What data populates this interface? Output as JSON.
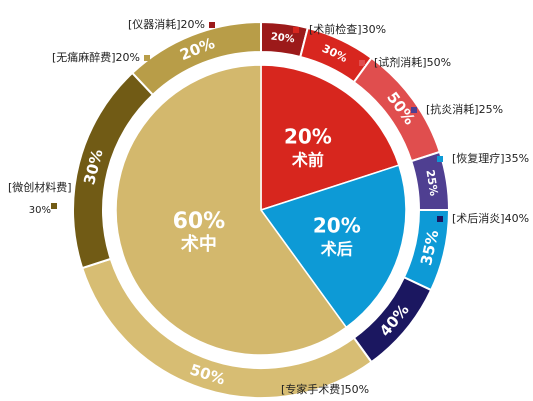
{
  "chart_data": {
    "type": "pie",
    "title": "",
    "inner_pie": [
      {
        "value": 20,
        "value_label": "20%",
        "name": "术前",
        "color": "#d7261e"
      },
      {
        "value": 20,
        "value_label": "20%",
        "name": "术后",
        "color": "#0d9ad6"
      },
      {
        "value": 60,
        "value_label": "60%",
        "name": "术中",
        "color": "#d3b86d"
      }
    ],
    "outer_ring": [
      {
        "parent": "术前",
        "value": 20,
        "value_label": "20%",
        "legend": "[仪器消耗]20%",
        "color": "#9c1a1a"
      },
      {
        "parent": "术前",
        "value": 30,
        "value_label": "30%",
        "legend": "[术前检查]30%",
        "color": "#d8261f"
      },
      {
        "parent": "术前",
        "value": 50,
        "value_label": "50%",
        "legend": "[试剂消耗]50%",
        "color": "#e04e4e"
      },
      {
        "parent": "术后",
        "value": 25,
        "value_label": "25%",
        "legend": "[抗炎消耗]25%",
        "color": "#4f3f91"
      },
      {
        "parent": "术后",
        "value": 35,
        "value_label": "35%",
        "legend": "[恢复理疗]35%",
        "color": "#0d9ad6"
      },
      {
        "parent": "术后",
        "value": 40,
        "value_label": "40%",
        "legend": "[术后消炎]40%",
        "color": "#1b1760"
      },
      {
        "parent": "术中",
        "value": 50,
        "value_label": "50%",
        "legend": "[专家手术费]50%",
        "color": "#d7bd73"
      },
      {
        "parent": "术中",
        "value": 30,
        "value_label": "30%",
        "legend": "[微创材料费] 30%",
        "color": "#715b15"
      },
      {
        "parent": "术中",
        "value": 20,
        "value_label": "20%",
        "legend": "[无痛麻醉费]20%",
        "color": "#b89d48"
      }
    ]
  }
}
